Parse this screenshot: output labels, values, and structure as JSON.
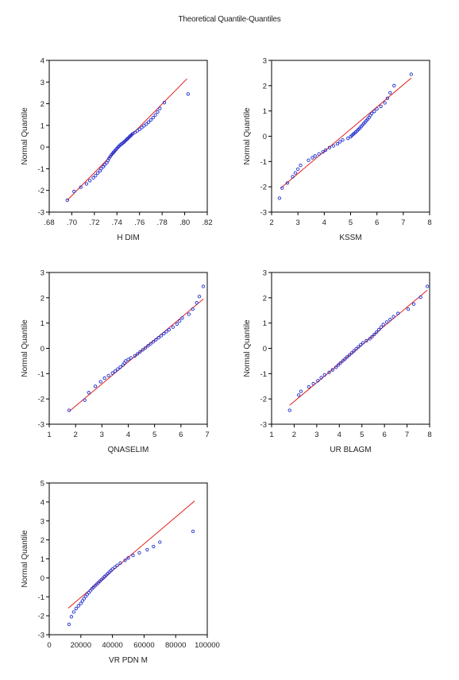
{
  "title": "Theoretical Quantile-Quantiles",
  "colors": {
    "points": "#1f2fd0",
    "reference_line": "#e0201c",
    "axes": "#000000"
  },
  "chart_data": [
    {
      "type": "scatter",
      "xlabel": "H DIM",
      "ylabel": "Normal Quantile",
      "xlim": [
        0.68,
        0.82
      ],
      "ylim": [
        -3,
        4
      ],
      "x_ticks": [
        ".68",
        ".70",
        ".72",
        ".74",
        ".76",
        ".78",
        ".80",
        ".82"
      ],
      "y_ticks": [
        "-3",
        "-2",
        "-1",
        "0",
        "1",
        "2",
        "3",
        "4"
      ],
      "marker": "circle-open",
      "reference_line": {
        "x": [
          0.696,
          0.802
        ],
        "y": [
          -2.45,
          3.15
        ]
      },
      "points": [
        [
          0.696,
          -2.45
        ],
        [
          0.702,
          -2.05
        ],
        [
          0.708,
          -1.85
        ],
        [
          0.713,
          -1.7
        ],
        [
          0.716,
          -1.55
        ],
        [
          0.719,
          -1.42
        ],
        [
          0.721,
          -1.32
        ],
        [
          0.723,
          -1.2
        ],
        [
          0.725,
          -1.1
        ],
        [
          0.726,
          -1.0
        ],
        [
          0.728,
          -0.9
        ],
        [
          0.729,
          -0.82
        ],
        [
          0.731,
          -0.72
        ],
        [
          0.732,
          -0.62
        ],
        [
          0.733,
          -0.52
        ],
        [
          0.734,
          -0.44
        ],
        [
          0.735,
          -0.36
        ],
        [
          0.736,
          -0.3
        ],
        [
          0.737,
          -0.24
        ],
        [
          0.738,
          -0.18
        ],
        [
          0.739,
          -0.12
        ],
        [
          0.74,
          -0.06
        ],
        [
          0.741,
          0.0
        ],
        [
          0.742,
          0.05
        ],
        [
          0.743,
          0.1
        ],
        [
          0.744,
          0.14
        ],
        [
          0.745,
          0.18
        ],
        [
          0.746,
          0.22
        ],
        [
          0.747,
          0.27
        ],
        [
          0.748,
          0.32
        ],
        [
          0.749,
          0.37
        ],
        [
          0.75,
          0.42
        ],
        [
          0.751,
          0.47
        ],
        [
          0.752,
          0.52
        ],
        [
          0.753,
          0.57
        ],
        [
          0.754,
          0.62
        ],
        [
          0.756,
          0.68
        ],
        [
          0.758,
          0.75
        ],
        [
          0.76,
          0.82
        ],
        [
          0.762,
          0.9
        ],
        [
          0.764,
          0.98
        ],
        [
          0.766,
          1.06
        ],
        [
          0.768,
          1.15
        ],
        [
          0.77,
          1.25
        ],
        [
          0.772,
          1.36
        ],
        [
          0.774,
          1.48
        ],
        [
          0.776,
          1.62
        ],
        [
          0.778,
          1.78
        ],
        [
          0.782,
          2.05
        ],
        [
          0.803,
          2.45
        ]
      ]
    },
    {
      "type": "scatter",
      "xlabel": "KSSM",
      "ylabel": "Normal Quantile",
      "xlim": [
        2,
        8
      ],
      "ylim": [
        -3,
        3
      ],
      "x_ticks": [
        "2",
        "3",
        "4",
        "5",
        "6",
        "7",
        "8"
      ],
      "y_ticks": [
        "-3",
        "-2",
        "-1",
        "0",
        "1",
        "2",
        "3"
      ],
      "marker": "circle-open",
      "reference_line": {
        "x": [
          2.35,
          7.3
        ],
        "y": [
          -2.05,
          2.3
        ]
      },
      "points": [
        [
          2.3,
          -2.45
        ],
        [
          2.4,
          -2.05
        ],
        [
          2.6,
          -1.85
        ],
        [
          2.8,
          -1.6
        ],
        [
          2.9,
          -1.45
        ],
        [
          3.0,
          -1.3
        ],
        [
          3.1,
          -1.15
        ],
        [
          3.4,
          -0.95
        ],
        [
          3.55,
          -0.85
        ],
        [
          3.65,
          -0.78
        ],
        [
          3.8,
          -0.7
        ],
        [
          3.95,
          -0.62
        ],
        [
          4.05,
          -0.55
        ],
        [
          4.2,
          -0.45
        ],
        [
          4.35,
          -0.38
        ],
        [
          4.5,
          -0.3
        ],
        [
          4.6,
          -0.22
        ],
        [
          4.7,
          -0.15
        ],
        [
          4.9,
          -0.08
        ],
        [
          5.0,
          -0.02
        ],
        [
          5.05,
          0.03
        ],
        [
          5.1,
          0.08
        ],
        [
          5.15,
          0.12
        ],
        [
          5.2,
          0.17
        ],
        [
          5.25,
          0.22
        ],
        [
          5.3,
          0.27
        ],
        [
          5.35,
          0.32
        ],
        [
          5.4,
          0.38
        ],
        [
          5.45,
          0.44
        ],
        [
          5.5,
          0.5
        ],
        [
          5.55,
          0.56
        ],
        [
          5.6,
          0.62
        ],
        [
          5.65,
          0.68
        ],
        [
          5.7,
          0.74
        ],
        [
          5.75,
          0.82
        ],
        [
          5.8,
          0.9
        ],
        [
          5.9,
          0.98
        ],
        [
          6.0,
          1.08
        ],
        [
          6.15,
          1.18
        ],
        [
          6.3,
          1.32
        ],
        [
          6.4,
          1.5
        ],
        [
          6.5,
          1.72
        ],
        [
          6.65,
          2.0
        ],
        [
          7.3,
          2.45
        ]
      ]
    },
    {
      "type": "scatter",
      "xlabel": "QNASELIM",
      "ylabel": "Normal Quantile",
      "xlim": [
        1,
        7
      ],
      "ylim": [
        -3,
        3
      ],
      "x_ticks": [
        "1",
        "2",
        "3",
        "4",
        "5",
        "6",
        "7"
      ],
      "y_ticks": [
        "-3",
        "-2",
        "-1",
        "0",
        "1",
        "2",
        "3"
      ],
      "marker": "circle-open",
      "reference_line": {
        "x": [
          1.75,
          6.85
        ],
        "y": [
          -2.5,
          1.95
        ]
      },
      "points": [
        [
          1.75,
          -2.45
        ],
        [
          2.35,
          -2.05
        ],
        [
          2.5,
          -1.75
        ],
        [
          2.75,
          -1.5
        ],
        [
          2.95,
          -1.32
        ],
        [
          3.1,
          -1.18
        ],
        [
          3.25,
          -1.08
        ],
        [
          3.4,
          -0.98
        ],
        [
          3.5,
          -0.9
        ],
        [
          3.6,
          -0.82
        ],
        [
          3.7,
          -0.74
        ],
        [
          3.8,
          -0.66
        ],
        [
          3.85,
          -0.58
        ],
        [
          3.9,
          -0.5
        ],
        [
          4.0,
          -0.44
        ],
        [
          4.1,
          -0.38
        ],
        [
          4.25,
          -0.3
        ],
        [
          4.35,
          -0.22
        ],
        [
          4.45,
          -0.14
        ],
        [
          4.55,
          -0.06
        ],
        [
          4.65,
          0.02
        ],
        [
          4.75,
          0.1
        ],
        [
          4.85,
          0.18
        ],
        [
          4.95,
          0.26
        ],
        [
          5.05,
          0.34
        ],
        [
          5.15,
          0.42
        ],
        [
          5.25,
          0.5
        ],
        [
          5.35,
          0.58
        ],
        [
          5.45,
          0.66
        ],
        [
          5.55,
          0.74
        ],
        [
          5.7,
          0.84
        ],
        [
          5.85,
          0.96
        ],
        [
          5.95,
          1.08
        ],
        [
          6.05,
          1.2
        ],
        [
          6.3,
          1.35
        ],
        [
          6.45,
          1.55
        ],
        [
          6.6,
          1.8
        ],
        [
          6.7,
          2.05
        ],
        [
          6.85,
          2.45
        ]
      ]
    },
    {
      "type": "scatter",
      "xlabel": "UR BLAGM",
      "ylabel": "Normal Quantile",
      "xlim": [
        1,
        8
      ],
      "ylim": [
        -3,
        3
      ],
      "x_ticks": [
        "1",
        "2",
        "3",
        "4",
        "5",
        "6",
        "7",
        "8"
      ],
      "y_ticks": [
        "-3",
        "-2",
        "-1",
        "0",
        "1",
        "2",
        "3"
      ],
      "marker": "circle-open",
      "reference_line": {
        "x": [
          1.8,
          7.9
        ],
        "y": [
          -2.25,
          2.3
        ]
      },
      "points": [
        [
          1.8,
          -2.45
        ],
        [
          2.2,
          -1.85
        ],
        [
          2.3,
          -1.7
        ],
        [
          2.65,
          -1.52
        ],
        [
          2.85,
          -1.4
        ],
        [
          3.05,
          -1.28
        ],
        [
          3.2,
          -1.16
        ],
        [
          3.35,
          -1.05
        ],
        [
          3.55,
          -0.95
        ],
        [
          3.7,
          -0.85
        ],
        [
          3.85,
          -0.75
        ],
        [
          3.95,
          -0.66
        ],
        [
          4.05,
          -0.58
        ],
        [
          4.15,
          -0.5
        ],
        [
          4.25,
          -0.42
        ],
        [
          4.35,
          -0.34
        ],
        [
          4.45,
          -0.26
        ],
        [
          4.55,
          -0.18
        ],
        [
          4.65,
          -0.1
        ],
        [
          4.75,
          -0.02
        ],
        [
          4.85,
          0.06
        ],
        [
          4.95,
          0.14
        ],
        [
          5.05,
          0.22
        ],
        [
          5.2,
          0.3
        ],
        [
          5.35,
          0.38
        ],
        [
          5.45,
          0.46
        ],
        [
          5.55,
          0.55
        ],
        [
          5.65,
          0.64
        ],
        [
          5.75,
          0.74
        ],
        [
          5.85,
          0.84
        ],
        [
          5.95,
          0.94
        ],
        [
          6.1,
          1.04
        ],
        [
          6.25,
          1.14
        ],
        [
          6.4,
          1.25
        ],
        [
          6.6,
          1.38
        ],
        [
          7.05,
          1.55
        ],
        [
          7.3,
          1.75
        ],
        [
          7.6,
          2.02
        ],
        [
          7.9,
          2.45
        ]
      ]
    },
    {
      "type": "scatter",
      "xlabel": "VR PDN M",
      "ylabel": "Normal Quantile",
      "xlim": [
        0,
        100000
      ],
      "ylim": [
        -3,
        5
      ],
      "x_ticks": [
        "0",
        "20000",
        "40000",
        "60000",
        "80000",
        "100000"
      ],
      "y_ticks": [
        "-3",
        "-2",
        "-1",
        "0",
        "1",
        "2",
        "3",
        "4",
        "5"
      ],
      "marker": "circle-open",
      "reference_line": {
        "x": [
          12000,
          92000
        ],
        "y": [
          -1.6,
          4.05
        ]
      },
      "points": [
        [
          12500,
          -2.45
        ],
        [
          14000,
          -2.05
        ],
        [
          15500,
          -1.8
        ],
        [
          17000,
          -1.62
        ],
        [
          18500,
          -1.48
        ],
        [
          20000,
          -1.35
        ],
        [
          21000,
          -1.22
        ],
        [
          22000,
          -1.1
        ],
        [
          23000,
          -0.98
        ],
        [
          24000,
          -0.88
        ],
        [
          25000,
          -0.78
        ],
        [
          26000,
          -0.68
        ],
        [
          27000,
          -0.58
        ],
        [
          28000,
          -0.5
        ],
        [
          29000,
          -0.42
        ],
        [
          30000,
          -0.34
        ],
        [
          31000,
          -0.26
        ],
        [
          32000,
          -0.18
        ],
        [
          33000,
          -0.1
        ],
        [
          34000,
          -0.02
        ],
        [
          35000,
          0.06
        ],
        [
          36000,
          0.14
        ],
        [
          37000,
          0.22
        ],
        [
          38000,
          0.3
        ],
        [
          39000,
          0.38
        ],
        [
          40000,
          0.46
        ],
        [
          41500,
          0.56
        ],
        [
          43000,
          0.66
        ],
        [
          45000,
          0.78
        ],
        [
          48000,
          0.92
        ],
        [
          50000,
          1.05
        ],
        [
          53000,
          1.18
        ],
        [
          57000,
          1.32
        ],
        [
          62000,
          1.48
        ],
        [
          66000,
          1.65
        ],
        [
          70000,
          1.88
        ],
        [
          91000,
          2.45
        ]
      ]
    }
  ]
}
